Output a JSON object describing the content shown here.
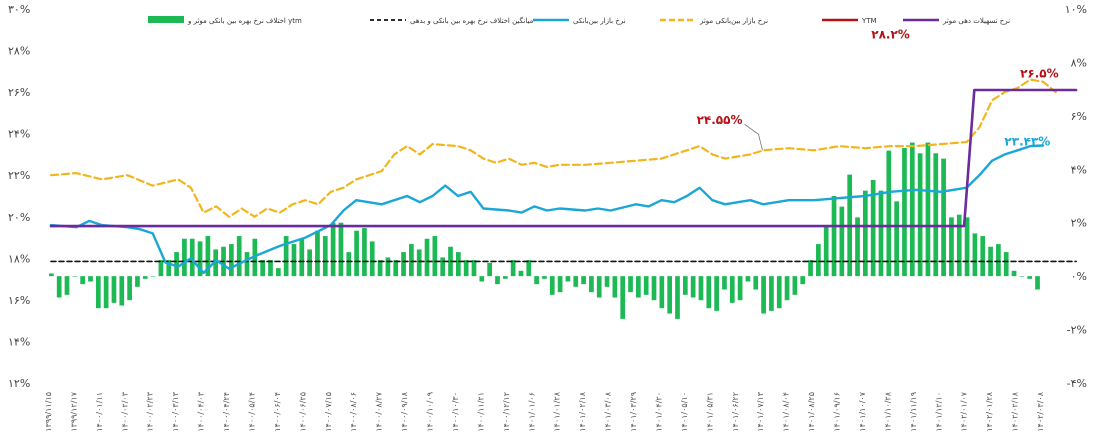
{
  "chart_data": {
    "type": "line",
    "title": "",
    "xlabel": "",
    "ylabel": "",
    "ylim_left": [
      12,
      30
    ],
    "ylim_right": [
      -4,
      10
    ],
    "yticks_left": [
      "۱۲%",
      "۱۴%",
      "۱۶%",
      "۱۸%",
      "۲۰%",
      "۲۲%",
      "۲۴%",
      "۲۶%",
      "۲۸%",
      "۳۰%"
    ],
    "yticks_right": [
      "-۴%",
      "-۲%",
      "۰%",
      "۲%",
      "۴%",
      "۶%",
      "۸%",
      "۱۰%"
    ],
    "x_labels": [
      "۱۳۹۹/۱۱/۱۵",
      "۱۳۹۹/۱۲/۱۷",
      "۱۴۰۰/۰۱/۱۱",
      "۱۴۰۰/۰۲/۰۳",
      "۱۴۰۰/۰۲/۲۳",
      "۱۴۰۰/۰۳/۱۳",
      "۱۴۰۰/۰۴/۰۳",
      "۱۴۰۰/۰۴/۲۴",
      "۱۴۰۰/۰۵/۱۴",
      "۱۴۰۰/۰۶/۰۴",
      "۱۴۰۰/۰۶/۲۵",
      "۱۴۰۰/۰۷/۱۵",
      "۱۴۰۰/۰۸/۰۶",
      "۱۴۰۰/۰۸/۲۷",
      "۱۴۰۰/۰۹/۱۸",
      "۱۴۰۰/۱۰/۰۹",
      "۱۴۰۰/۱۰/۳۰",
      "۱۴۰۰/۱۱/۲۱",
      "۱۴۰۰/۱۲/۱۲",
      "۱۴۰۱/۰۱/۰۶",
      "۱۴۰۱/۰۱/۲۸",
      "۱۴۰۱/۰۲/۱۸",
      "۱۴۰۱/۰۳/۰۸",
      "۱۴۰۱/۰۳/۲۹",
      "۱۴۰۱/۰۴/۲۰",
      "۱۴۰۱/۰۵/۱۰",
      "۱۴۰۱/۰۵/۳۱",
      "۱۴۰۱/۰۶/۲۲",
      "۱۴۰۱/۰۷/۱۳",
      "۱۴۰۱/۰۸/۰۴",
      "۱۴۰۱/۰۸/۲۵",
      "۱۴۰۱/۰۹/۱۶",
      "۱۴۰۱/۱۰/۰۷",
      "۱۴۰۱/۱۰/۲۸",
      "۱۴۰۱/۱۱/۱۹",
      "۱۴۰۱/۱۲/۱۰",
      "۱۴۰۲/۰۱/۰۷",
      "۱۴۰۲/۰۱/۲۸",
      "۱۴۰۲/۰۲/۱۸",
      "۱۴۰۲/۰۳/۰۸"
    ],
    "legend": {
      "bars": "اختلاف نرخ بهره بین بانکی موثر و ytm",
      "avg": "میانگین اختلاف نرخ بهره بین بانکی و بدهی",
      "market": "نرخ بازار بین‌بانکی",
      "effective": "نرخ بازار بین‌بانکی موثر",
      "ytm": "YTM",
      "repo": "نرخ تسهیلات دهی موثر"
    },
    "colors": {
      "bars": "#1db954",
      "avg": "#111111",
      "market": "#1aa7d8",
      "effective": "#f2b51c",
      "ytm": "#b31217",
      "repo": "#6a2c9c"
    },
    "annotations": [
      {
        "text": "۲۸.۲%",
        "x": 33.4,
        "y": 28.2,
        "color": "#b31217"
      },
      {
        "text": "۲۶.۵%",
        "x": 38.7,
        "y": 26.5,
        "color": "#b31217"
      },
      {
        "text": "۲۴.۵۵%",
        "x": 27.5,
        "y": 24.55,
        "color": "#b31217"
      },
      {
        "text": "۲۳.۴۳%",
        "x": 38.7,
        "y": 23.43,
        "color": "#1aa7d8"
      }
    ],
    "series": [
      {
        "name": "YTM",
        "axis": "left",
        "points": [
          [
            0,
            22.0
          ],
          [
            0.5,
            21.4
          ],
          [
            1,
            21.8
          ],
          [
            1.5,
            21.1
          ],
          [
            2,
            21.2
          ],
          [
            2.5,
            21.9
          ],
          [
            3,
            21.4
          ],
          [
            3.5,
            22.0
          ],
          [
            4,
            21.8
          ],
          [
            4.5,
            22.3
          ],
          [
            5,
            21.8
          ],
          [
            5.5,
            21.3
          ],
          [
            6,
            21.8
          ],
          [
            6.5,
            21.3
          ],
          [
            7,
            21.2
          ],
          [
            7.5,
            20.5
          ],
          [
            8,
            21.2
          ],
          [
            8.5,
            20.8
          ],
          [
            9,
            21.5
          ],
          [
            9.5,
            21.2
          ],
          [
            10,
            21.8
          ],
          [
            10.5,
            22.0
          ],
          [
            11,
            21.5
          ],
          [
            11.5,
            22.5
          ],
          [
            12,
            23.0
          ],
          [
            12.5,
            22.3
          ],
          [
            13,
            23.2
          ],
          [
            13.5,
            22.6
          ],
          [
            14,
            23.0
          ],
          [
            14.5,
            23.6
          ],
          [
            15,
            24.0
          ],
          [
            15.5,
            23.7
          ],
          [
            16,
            24.6
          ],
          [
            16.5,
            24.3
          ],
          [
            17,
            23.0
          ],
          [
            17.5,
            22.6
          ],
          [
            18,
            22.4
          ],
          [
            18.5,
            22.7
          ],
          [
            19,
            22.0
          ],
          [
            19.5,
            22.8
          ],
          [
            20,
            22.0
          ],
          [
            20.5,
            21.5
          ],
          [
            21,
            21.8
          ],
          [
            21.5,
            21.6
          ],
          [
            22,
            22.0
          ],
          [
            22.5,
            21.8
          ],
          [
            23,
            21.2
          ],
          [
            23.5,
            21.9
          ],
          [
            24,
            22.5
          ],
          [
            24.5,
            21.9
          ],
          [
            25,
            22.1
          ],
          [
            25.5,
            22.6
          ],
          [
            26,
            22.8
          ],
          [
            26.5,
            22.3
          ],
          [
            27,
            21.8
          ],
          [
            27.5,
            21.9
          ],
          [
            28,
            22.5
          ],
          [
            28.5,
            22.6
          ],
          [
            29,
            21.8
          ],
          [
            29.5,
            21.8
          ],
          [
            30,
            22.0
          ],
          [
            30.5,
            23.0
          ],
          [
            31,
            23.4
          ],
          [
            31.5,
            24.0
          ],
          [
            32,
            24.6
          ],
          [
            32.5,
            25.4
          ],
          [
            33,
            26.8
          ],
          [
            33.5,
            27.0
          ],
          [
            34,
            26.4
          ],
          [
            34.5,
            27.6
          ],
          [
            35,
            28.2
          ],
          [
            35.5,
            28.0
          ],
          [
            36,
            27.2
          ],
          [
            36.5,
            26.3
          ],
          [
            37,
            26.5
          ],
          [
            37.5,
            27.7
          ],
          [
            38,
            27.9
          ],
          [
            38.5,
            27.4
          ],
          [
            39,
            27.6
          ],
          [
            39.5,
            26.8
          ],
          [
            40,
            26.7
          ],
          [
            40.3,
            26.3
          ]
        ]
      },
      {
        "name": "market",
        "axis": "left",
        "points": [
          [
            0,
            19.6
          ],
          [
            1,
            19.5
          ],
          [
            1.5,
            19.8
          ],
          [
            2,
            19.6
          ],
          [
            3,
            19.5
          ],
          [
            3.5,
            19.4
          ],
          [
            4,
            19.2
          ],
          [
            4.5,
            17.8
          ],
          [
            5,
            17.6
          ],
          [
            5.5,
            18.0
          ],
          [
            6,
            17.3
          ],
          [
            6.5,
            17.9
          ],
          [
            7,
            17.5
          ],
          [
            7.5,
            17.8
          ],
          [
            8,
            18.1
          ],
          [
            9,
            18.6
          ],
          [
            10,
            19.0
          ],
          [
            11,
            19.6
          ],
          [
            11.5,
            20.3
          ],
          [
            12,
            20.8
          ],
          [
            13,
            20.6
          ],
          [
            14,
            21.0
          ],
          [
            14.5,
            20.7
          ],
          [
            15,
            21.0
          ],
          [
            15.5,
            21.5
          ],
          [
            16,
            21.0
          ],
          [
            16.5,
            21.2
          ],
          [
            17,
            20.4
          ],
          [
            18,
            20.3
          ],
          [
            18.5,
            20.2
          ],
          [
            19,
            20.5
          ],
          [
            19.5,
            20.3
          ],
          [
            20,
            20.4
          ],
          [
            21,
            20.3
          ],
          [
            21.5,
            20.4
          ],
          [
            22,
            20.3
          ],
          [
            23,
            20.6
          ],
          [
            23.5,
            20.5
          ],
          [
            24,
            20.8
          ],
          [
            24.5,
            20.7
          ],
          [
            25,
            21.0
          ],
          [
            25.5,
            21.4
          ],
          [
            26,
            20.8
          ],
          [
            26.5,
            20.6
          ],
          [
            27,
            20.7
          ],
          [
            27.5,
            20.8
          ],
          [
            28,
            20.6
          ],
          [
            29,
            20.8
          ],
          [
            30,
            20.8
          ],
          [
            31,
            20.9
          ],
          [
            32,
            21.0
          ],
          [
            33,
            21.2
          ],
          [
            34,
            21.3
          ],
          [
            35,
            21.2
          ],
          [
            36,
            21.4
          ],
          [
            36.5,
            22.0
          ],
          [
            37,
            22.7
          ],
          [
            37.5,
            23.0
          ],
          [
            38,
            23.2
          ],
          [
            38.5,
            23.4
          ],
          [
            39,
            23.43
          ]
        ]
      },
      {
        "name": "effective",
        "axis": "left",
        "points": [
          [
            0,
            22.0
          ],
          [
            1,
            22.1
          ],
          [
            2,
            21.8
          ],
          [
            3,
            22.0
          ],
          [
            4,
            21.5
          ],
          [
            5,
            21.8
          ],
          [
            5.5,
            21.4
          ],
          [
            6,
            20.2
          ],
          [
            6.5,
            20.5
          ],
          [
            7,
            20.0
          ],
          [
            7.5,
            20.4
          ],
          [
            8,
            20.0
          ],
          [
            8.5,
            20.4
          ],
          [
            9,
            20.2
          ],
          [
            9.5,
            20.6
          ],
          [
            10,
            20.8
          ],
          [
            10.5,
            20.6
          ],
          [
            11,
            21.2
          ],
          [
            11.5,
            21.4
          ],
          [
            12,
            21.8
          ],
          [
            13,
            22.2
          ],
          [
            13.5,
            23.0
          ],
          [
            14,
            23.4
          ],
          [
            14.5,
            23.0
          ],
          [
            15,
            23.5
          ],
          [
            16,
            23.4
          ],
          [
            16.5,
            23.2
          ],
          [
            17,
            22.8
          ],
          [
            17.5,
            22.6
          ],
          [
            18,
            22.8
          ],
          [
            18.5,
            22.5
          ],
          [
            19,
            22.6
          ],
          [
            19.5,
            22.4
          ],
          [
            20,
            22.5
          ],
          [
            21,
            22.5
          ],
          [
            22,
            22.6
          ],
          [
            23,
            22.7
          ],
          [
            24,
            22.8
          ],
          [
            24.5,
            23.0
          ],
          [
            25,
            23.2
          ],
          [
            25.5,
            23.4
          ],
          [
            26,
            23.0
          ],
          [
            26.5,
            22.8
          ],
          [
            27,
            22.9
          ],
          [
            27.5,
            23.0
          ],
          [
            28,
            23.2
          ],
          [
            29,
            23.3
          ],
          [
            30,
            23.2
          ],
          [
            30.5,
            23.3
          ],
          [
            31,
            23.4
          ],
          [
            32,
            23.3
          ],
          [
            33,
            23.4
          ],
          [
            34,
            23.4
          ],
          [
            35,
            23.5
          ],
          [
            36,
            23.6
          ],
          [
            36.5,
            24.3
          ],
          [
            37,
            25.6
          ],
          [
            37.5,
            26.0
          ],
          [
            38,
            26.2
          ],
          [
            38.5,
            26.6
          ],
          [
            39,
            26.5
          ],
          [
            39.5,
            26.0
          ]
        ]
      },
      {
        "name": "repo",
        "axis": "left",
        "points": [
          [
            0,
            19.55
          ],
          [
            35.9,
            19.55
          ],
          [
            36.3,
            26.1
          ],
          [
            40.3,
            26.1
          ]
        ]
      },
      {
        "name": "avg",
        "axis": "right",
        "points": [
          [
            0,
            0.55
          ],
          [
            40.3,
            0.55
          ]
        ]
      }
    ],
    "bars": [
      0.1,
      -0.8,
      -0.7,
      0.0,
      -0.3,
      -0.2,
      -1.2,
      -1.2,
      -1.0,
      -1.1,
      -0.9,
      -0.4,
      -0.1,
      0.0,
      0.6,
      0.6,
      0.9,
      1.4,
      1.4,
      1.3,
      1.5,
      1.0,
      1.1,
      1.2,
      1.5,
      0.9,
      1.4,
      0.6,
      0.6,
      0.3,
      1.5,
      1.2,
      1.4,
      1.0,
      1.7,
      1.5,
      2.0,
      2.0,
      0.9,
      1.7,
      1.8,
      1.3,
      0.6,
      0.7,
      0.6,
      0.9,
      1.2,
      1.0,
      1.4,
      1.5,
      0.7,
      1.1,
      0.9,
      0.6,
      0.6,
      -0.2,
      0.5,
      -0.3,
      -0.1,
      0.6,
      0.2,
      0.6,
      -0.3,
      -0.1,
      -0.7,
      -0.6,
      -0.2,
      -0.4,
      -0.3,
      -0.6,
      -0.8,
      -0.4,
      -0.8,
      -1.6,
      -0.6,
      -0.8,
      -0.7,
      -0.9,
      -1.2,
      -1.4,
      -1.6,
      -0.7,
      -0.8,
      -0.9,
      -1.2,
      -1.3,
      -0.5,
      -1.0,
      -0.9,
      -0.2,
      -0.5,
      -1.4,
      -1.3,
      -1.2,
      -0.9,
      -0.7,
      -0.3,
      0.6,
      1.2,
      1.9,
      3.0,
      2.6,
      3.8,
      2.2,
      3.2,
      3.6,
      3.2,
      4.7,
      2.8,
      4.8,
      5.0,
      4.6,
      5.0,
      4.6,
      4.4,
      2.2,
      2.3,
      2.2,
      1.6,
      1.5,
      1.1,
      1.2,
      0.9,
      0.2,
      0.0,
      -0.1,
      -0.5
    ]
  }
}
